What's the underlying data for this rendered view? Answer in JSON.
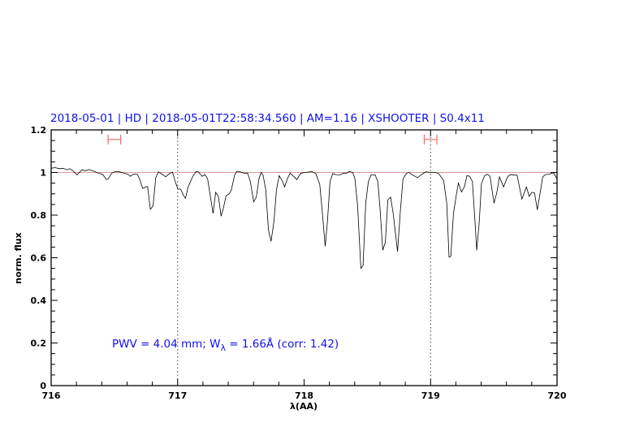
{
  "chart_data": {
    "type": "line",
    "title": "2018-05-01 | HD | 2018-05-01T22:58:34.560 | AM=1.16 | XSHOOTER | S0.4x11",
    "xlabel": "λ(AA)",
    "ylabel": "norm. flux",
    "xlim": [
      716,
      720
    ],
    "ylim": [
      0,
      1.2
    ],
    "xticks": [
      "716",
      "717",
      "718",
      "719",
      "720"
    ],
    "yticks": [
      "0",
      "0.2",
      "0.4",
      "0.6",
      "0.8",
      "1",
      "1.2"
    ],
    "x_minor_step": 0.2,
    "y_minor_step": 0.05,
    "grid": false,
    "reference_line": {
      "y": 1.0,
      "color": "#d99a9a"
    },
    "vertical_dotted_lines": [
      717,
      719
    ],
    "error_bars": {
      "color": "#f06a6a",
      "y": 1.155,
      "ranges": [
        [
          716.45,
          716.55
        ],
        [
          718.95,
          719.05
        ]
      ]
    },
    "annotation": {
      "prefix": "PWV = 4.04 mm; W",
      "subscript": "λ",
      "suffix": " = 1.66Å (corr: 1.42)",
      "color": "#1010ee"
    },
    "series": [
      {
        "color": "#000000",
        "points": [
          [
            716.0,
            1.02
          ],
          [
            716.03,
            1.023
          ],
          [
            716.068,
            1.018
          ],
          [
            716.094,
            1.02
          ],
          [
            716.126,
            1.013
          ],
          [
            716.147,
            1.018
          ],
          [
            716.169,
            1.01
          ],
          [
            716.205,
            0.989
          ],
          [
            716.244,
            1.013
          ],
          [
            716.271,
            1.008
          ],
          [
            716.301,
            1.014
          ],
          [
            716.34,
            1.005
          ],
          [
            716.383,
            0.995
          ],
          [
            716.408,
            0.992
          ],
          [
            716.436,
            0.967
          ],
          [
            716.451,
            0.97
          ],
          [
            716.479,
            0.997
          ],
          [
            716.511,
            1.005
          ],
          [
            716.543,
            1.003
          ],
          [
            716.585,
            0.995
          ],
          [
            716.607,
            0.992
          ],
          [
            716.628,
            0.982
          ],
          [
            716.649,
            0.992
          ],
          [
            716.681,
            0.992
          ],
          [
            716.699,
            0.97
          ],
          [
            716.724,
            0.925
          ],
          [
            716.746,
            0.932
          ],
          [
            716.763,
            0.934
          ],
          [
            716.784,
            0.827
          ],
          [
            716.806,
            0.843
          ],
          [
            716.827,
            0.976
          ],
          [
            716.848,
            1.003
          ],
          [
            716.878,
            0.992
          ],
          [
            716.906,
            0.98
          ],
          [
            716.934,
            0.995
          ],
          [
            716.96,
            1.001
          ],
          [
            716.981,
            0.957
          ],
          [
            717.002,
            0.922
          ],
          [
            717.024,
            0.922
          ],
          [
            717.045,
            0.894
          ],
          [
            717.062,
            0.879
          ],
          [
            717.083,
            0.932
          ],
          [
            717.12,
            0.982
          ],
          [
            717.147,
            1.005
          ],
          [
            717.162,
            1.004
          ],
          [
            717.194,
            0.982
          ],
          [
            717.216,
            0.99
          ],
          [
            717.237,
            0.97
          ],
          [
            717.254,
            0.907
          ],
          [
            717.28,
            0.808
          ],
          [
            717.301,
            0.907
          ],
          [
            717.322,
            0.888
          ],
          [
            717.344,
            0.795
          ],
          [
            717.361,
            0.831
          ],
          [
            717.383,
            0.891
          ],
          [
            717.408,
            0.9
          ],
          [
            717.425,
            0.919
          ],
          [
            717.451,
            0.989
          ],
          [
            717.468,
            1.005
          ],
          [
            717.494,
            1.003
          ],
          [
            717.526,
            0.997
          ],
          [
            717.553,
            0.997
          ],
          [
            717.575,
            0.957
          ],
          [
            717.601,
            0.862
          ],
          [
            717.622,
            0.884
          ],
          [
            717.643,
            0.97
          ],
          [
            717.66,
            1.0
          ],
          [
            717.675,
            0.989
          ],
          [
            717.697,
            0.919
          ],
          [
            717.718,
            0.73
          ],
          [
            717.739,
            0.677
          ],
          [
            717.761,
            0.768
          ],
          [
            717.782,
            0.919
          ],
          [
            717.803,
            0.985
          ],
          [
            717.831,
            0.957
          ],
          [
            717.846,
            0.932
          ],
          [
            717.867,
            0.97
          ],
          [
            717.889,
            0.997
          ],
          [
            717.917,
            0.982
          ],
          [
            717.942,
            0.967
          ],
          [
            717.974,
            0.997
          ],
          [
            718.006,
            1.0
          ],
          [
            718.017,
            1.0
          ],
          [
            718.06,
            1.005
          ],
          [
            718.092,
            0.995
          ],
          [
            718.124,
            0.944
          ],
          [
            718.141,
            0.831
          ],
          [
            718.167,
            0.654
          ],
          [
            718.184,
            0.768
          ],
          [
            718.205,
            0.957
          ],
          [
            718.226,
            0.995
          ],
          [
            718.252,
            0.99
          ],
          [
            718.284,
            0.989
          ],
          [
            718.312,
            0.997
          ],
          [
            718.338,
            0.997
          ],
          [
            718.355,
            1.005
          ],
          [
            718.385,
            1.0
          ],
          [
            718.402,
            0.97
          ],
          [
            718.423,
            0.843
          ],
          [
            718.449,
            0.55
          ],
          [
            718.466,
            0.563
          ],
          [
            718.487,
            0.856
          ],
          [
            718.508,
            0.957
          ],
          [
            718.53,
            0.989
          ],
          [
            718.562,
            0.989
          ],
          [
            718.583,
            0.957
          ],
          [
            718.6,
            0.831
          ],
          [
            718.622,
            0.635
          ],
          [
            718.643,
            0.673
          ],
          [
            718.662,
            0.871
          ],
          [
            718.684,
            0.884
          ],
          [
            718.705,
            0.806
          ],
          [
            718.739,
            0.629
          ],
          [
            718.761,
            0.818
          ],
          [
            718.782,
            0.97
          ],
          [
            718.808,
            0.995
          ],
          [
            718.829,
            1.001
          ],
          [
            718.855,
            0.989
          ],
          [
            718.897,
            0.976
          ],
          [
            718.932,
            0.992
          ],
          [
            718.962,
            1.003
          ],
          [
            719.0,
            1.0
          ],
          [
            719.038,
            1.0
          ],
          [
            719.064,
            0.995
          ],
          [
            719.103,
            0.963
          ],
          [
            719.128,
            0.856
          ],
          [
            719.146,
            0.603
          ],
          [
            719.16,
            0.606
          ],
          [
            719.181,
            0.806
          ],
          [
            719.203,
            0.894
          ],
          [
            719.22,
            0.951
          ],
          [
            719.245,
            0.909
          ],
          [
            719.267,
            0.932
          ],
          [
            719.288,
            0.985
          ],
          [
            719.31,
            0.982
          ],
          [
            719.331,
            0.957
          ],
          [
            719.353,
            0.755
          ],
          [
            719.365,
            0.635
          ],
          [
            719.385,
            0.768
          ],
          [
            719.402,
            0.947
          ],
          [
            719.427,
            0.985
          ],
          [
            719.449,
            0.992
          ],
          [
            719.47,
            0.982
          ],
          [
            719.502,
            0.856
          ],
          [
            719.524,
            0.907
          ],
          [
            719.545,
            0.98
          ],
          [
            719.577,
            0.932
          ],
          [
            719.609,
            0.98
          ],
          [
            719.631,
            0.99
          ],
          [
            719.684,
            0.987
          ],
          [
            719.722,
            0.875
          ],
          [
            719.758,
            0.932
          ],
          [
            719.78,
            0.888
          ],
          [
            719.801,
            0.907
          ],
          [
            719.822,
            0.904
          ],
          [
            719.844,
            0.825
          ],
          [
            719.865,
            0.9
          ],
          [
            719.887,
            0.98
          ],
          [
            719.908,
            0.99
          ],
          [
            719.94,
            0.992
          ],
          [
            719.972,
            1.0
          ],
          [
            720.0,
            0.97
          ]
        ]
      }
    ]
  }
}
